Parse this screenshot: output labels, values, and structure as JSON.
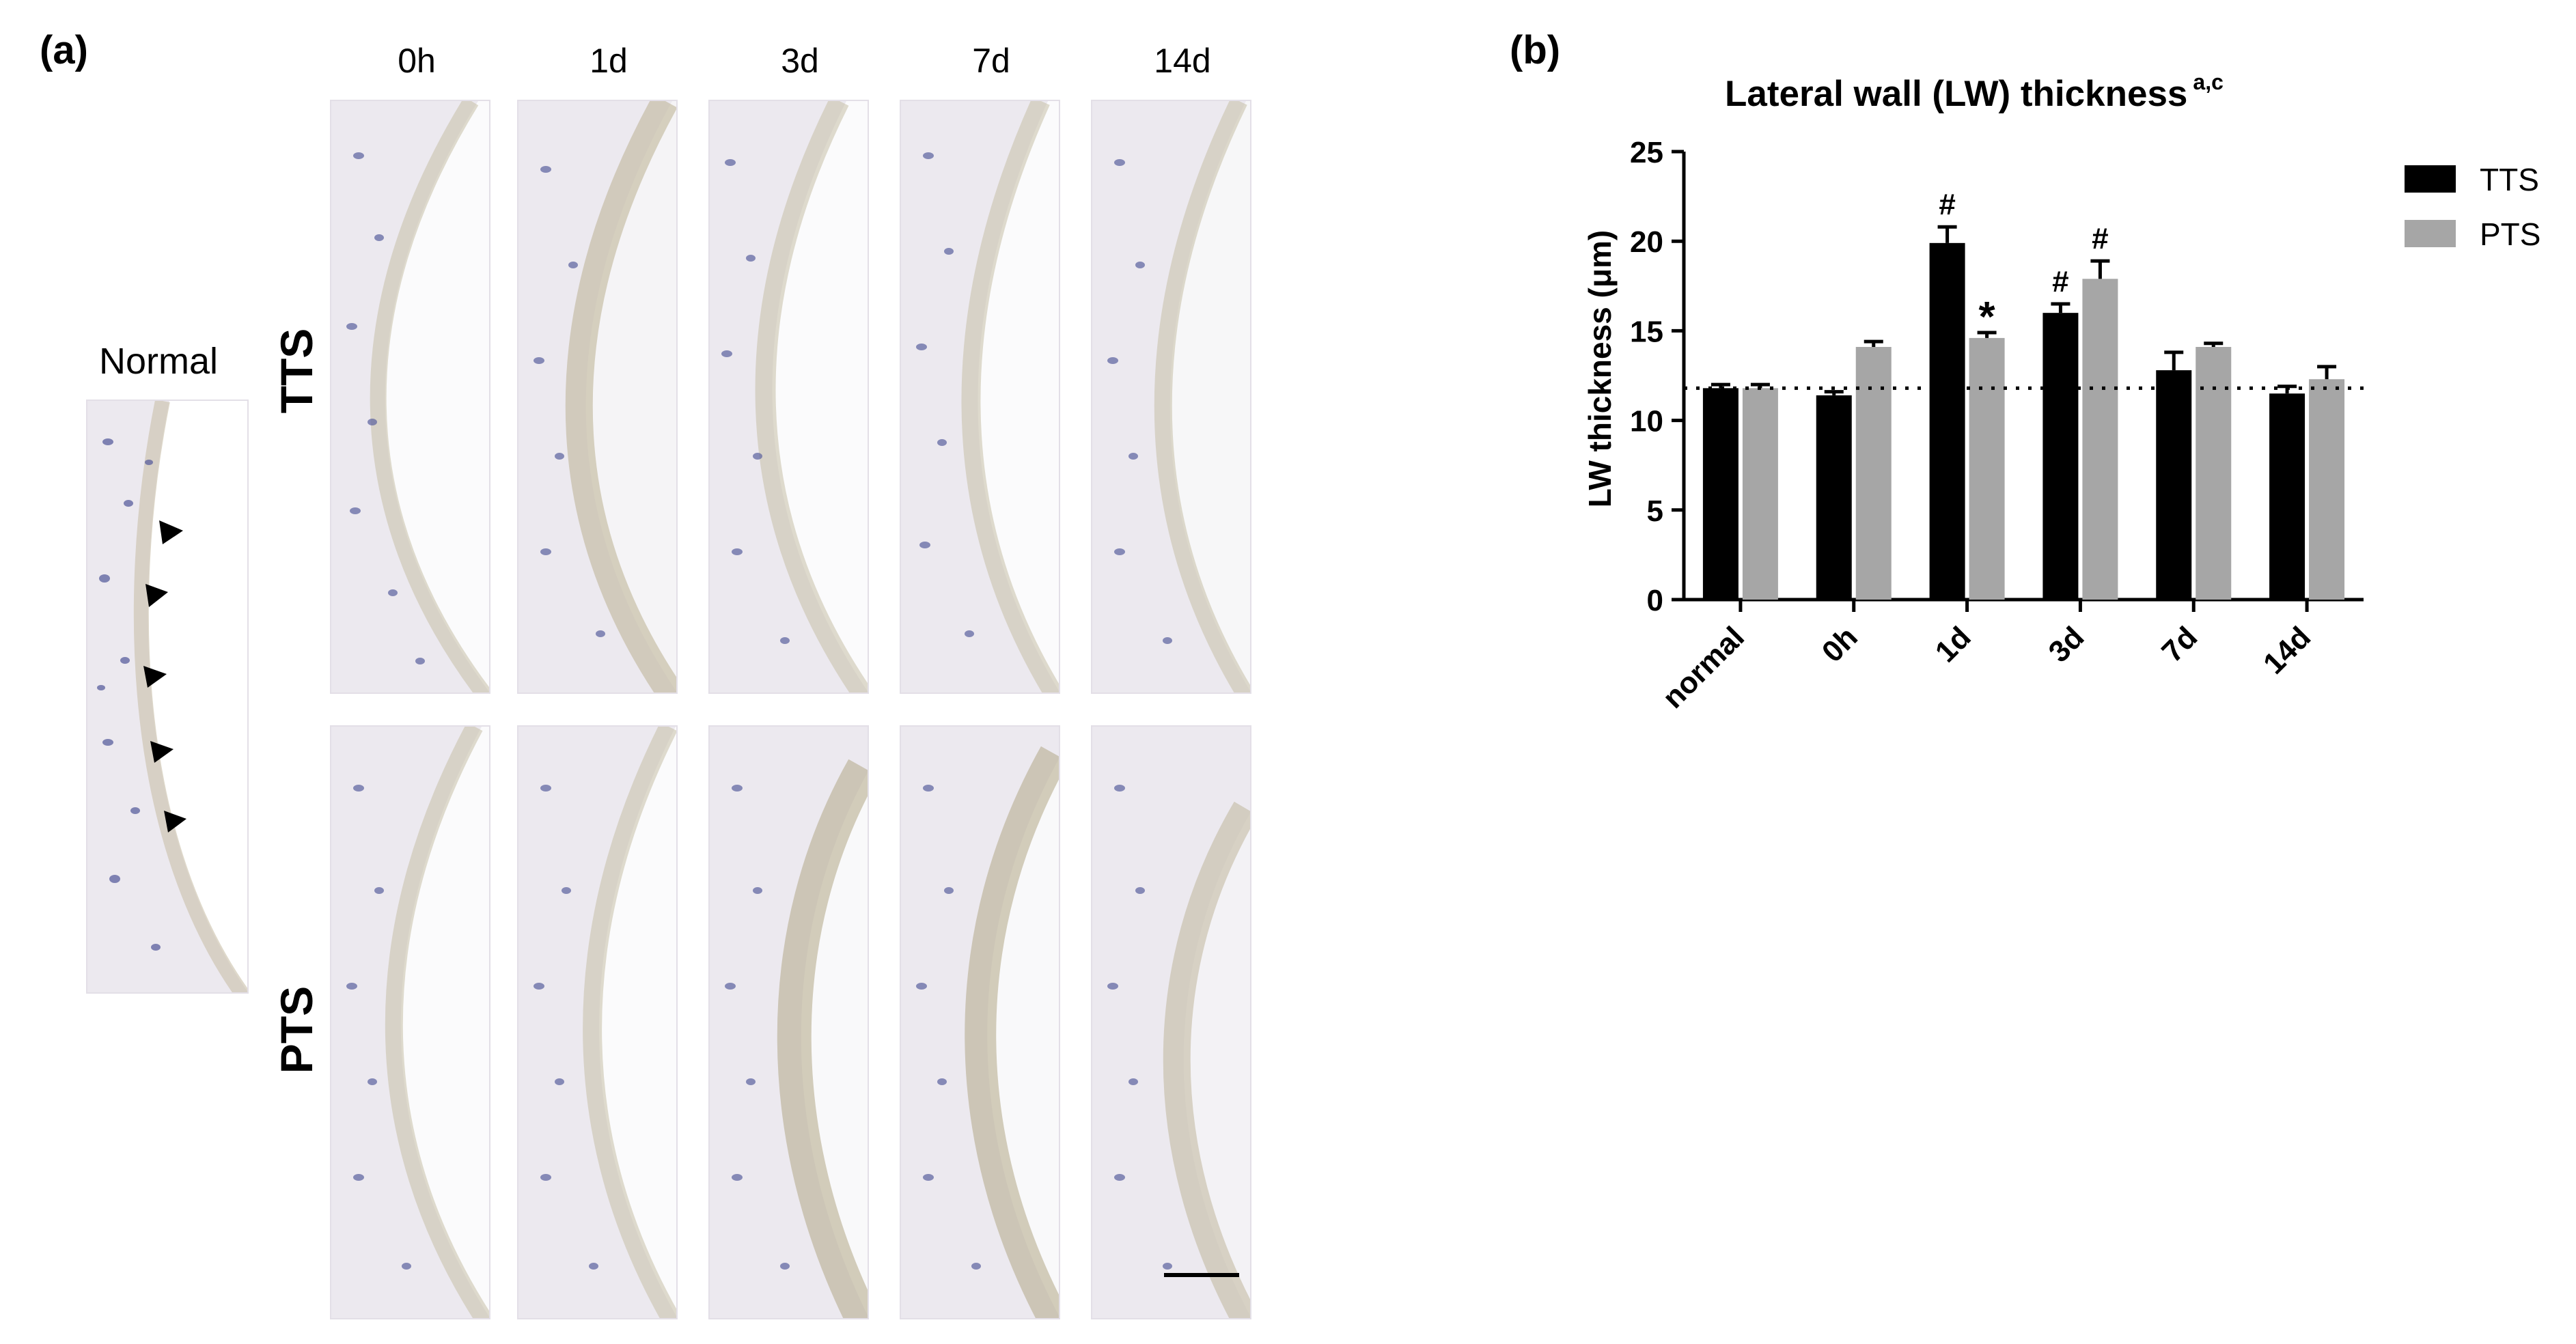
{
  "figure": {
    "panel_a_label": "(a)",
    "panel_b_label": "(b)",
    "normal_label": "Normal",
    "columns": [
      "0h",
      "1d",
      "3d",
      "7d",
      "14d"
    ],
    "rows": [
      "TTS",
      "PTS"
    ]
  },
  "chart_data": {
    "type": "bar",
    "title": "Lateral wall (LW) thickness",
    "title_superscript": "a,c",
    "xlabel": "",
    "ylabel": "LW thickness (μm)",
    "ylim": [
      0,
      25
    ],
    "yticks": [
      "0",
      "5",
      "10",
      "15",
      "20",
      "25"
    ],
    "categories": [
      "normal",
      "0h",
      "1d",
      "3d",
      "7d",
      "14d"
    ],
    "series": [
      {
        "name": "TTS",
        "color": "#000000",
        "values": [
          11.8,
          11.4,
          19.9,
          16.0,
          12.8,
          11.5
        ],
        "errors": [
          0.2,
          0.2,
          0.9,
          0.5,
          1.0,
          0.4
        ],
        "annotations": [
          "",
          "",
          "#",
          "#",
          "",
          ""
        ]
      },
      {
        "name": "PTS",
        "color": "#a6a6a6",
        "values": [
          11.8,
          14.1,
          14.6,
          17.9,
          14.1,
          12.3
        ],
        "errors": [
          0.2,
          0.3,
          0.3,
          1.0,
          0.2,
          0.7
        ],
        "annotations": [
          "",
          "",
          "*",
          "#",
          "",
          ""
        ]
      }
    ],
    "reference_line": {
      "value": 11.8,
      "style": "dotted"
    },
    "legend_position": "top-right",
    "grid": false
  }
}
